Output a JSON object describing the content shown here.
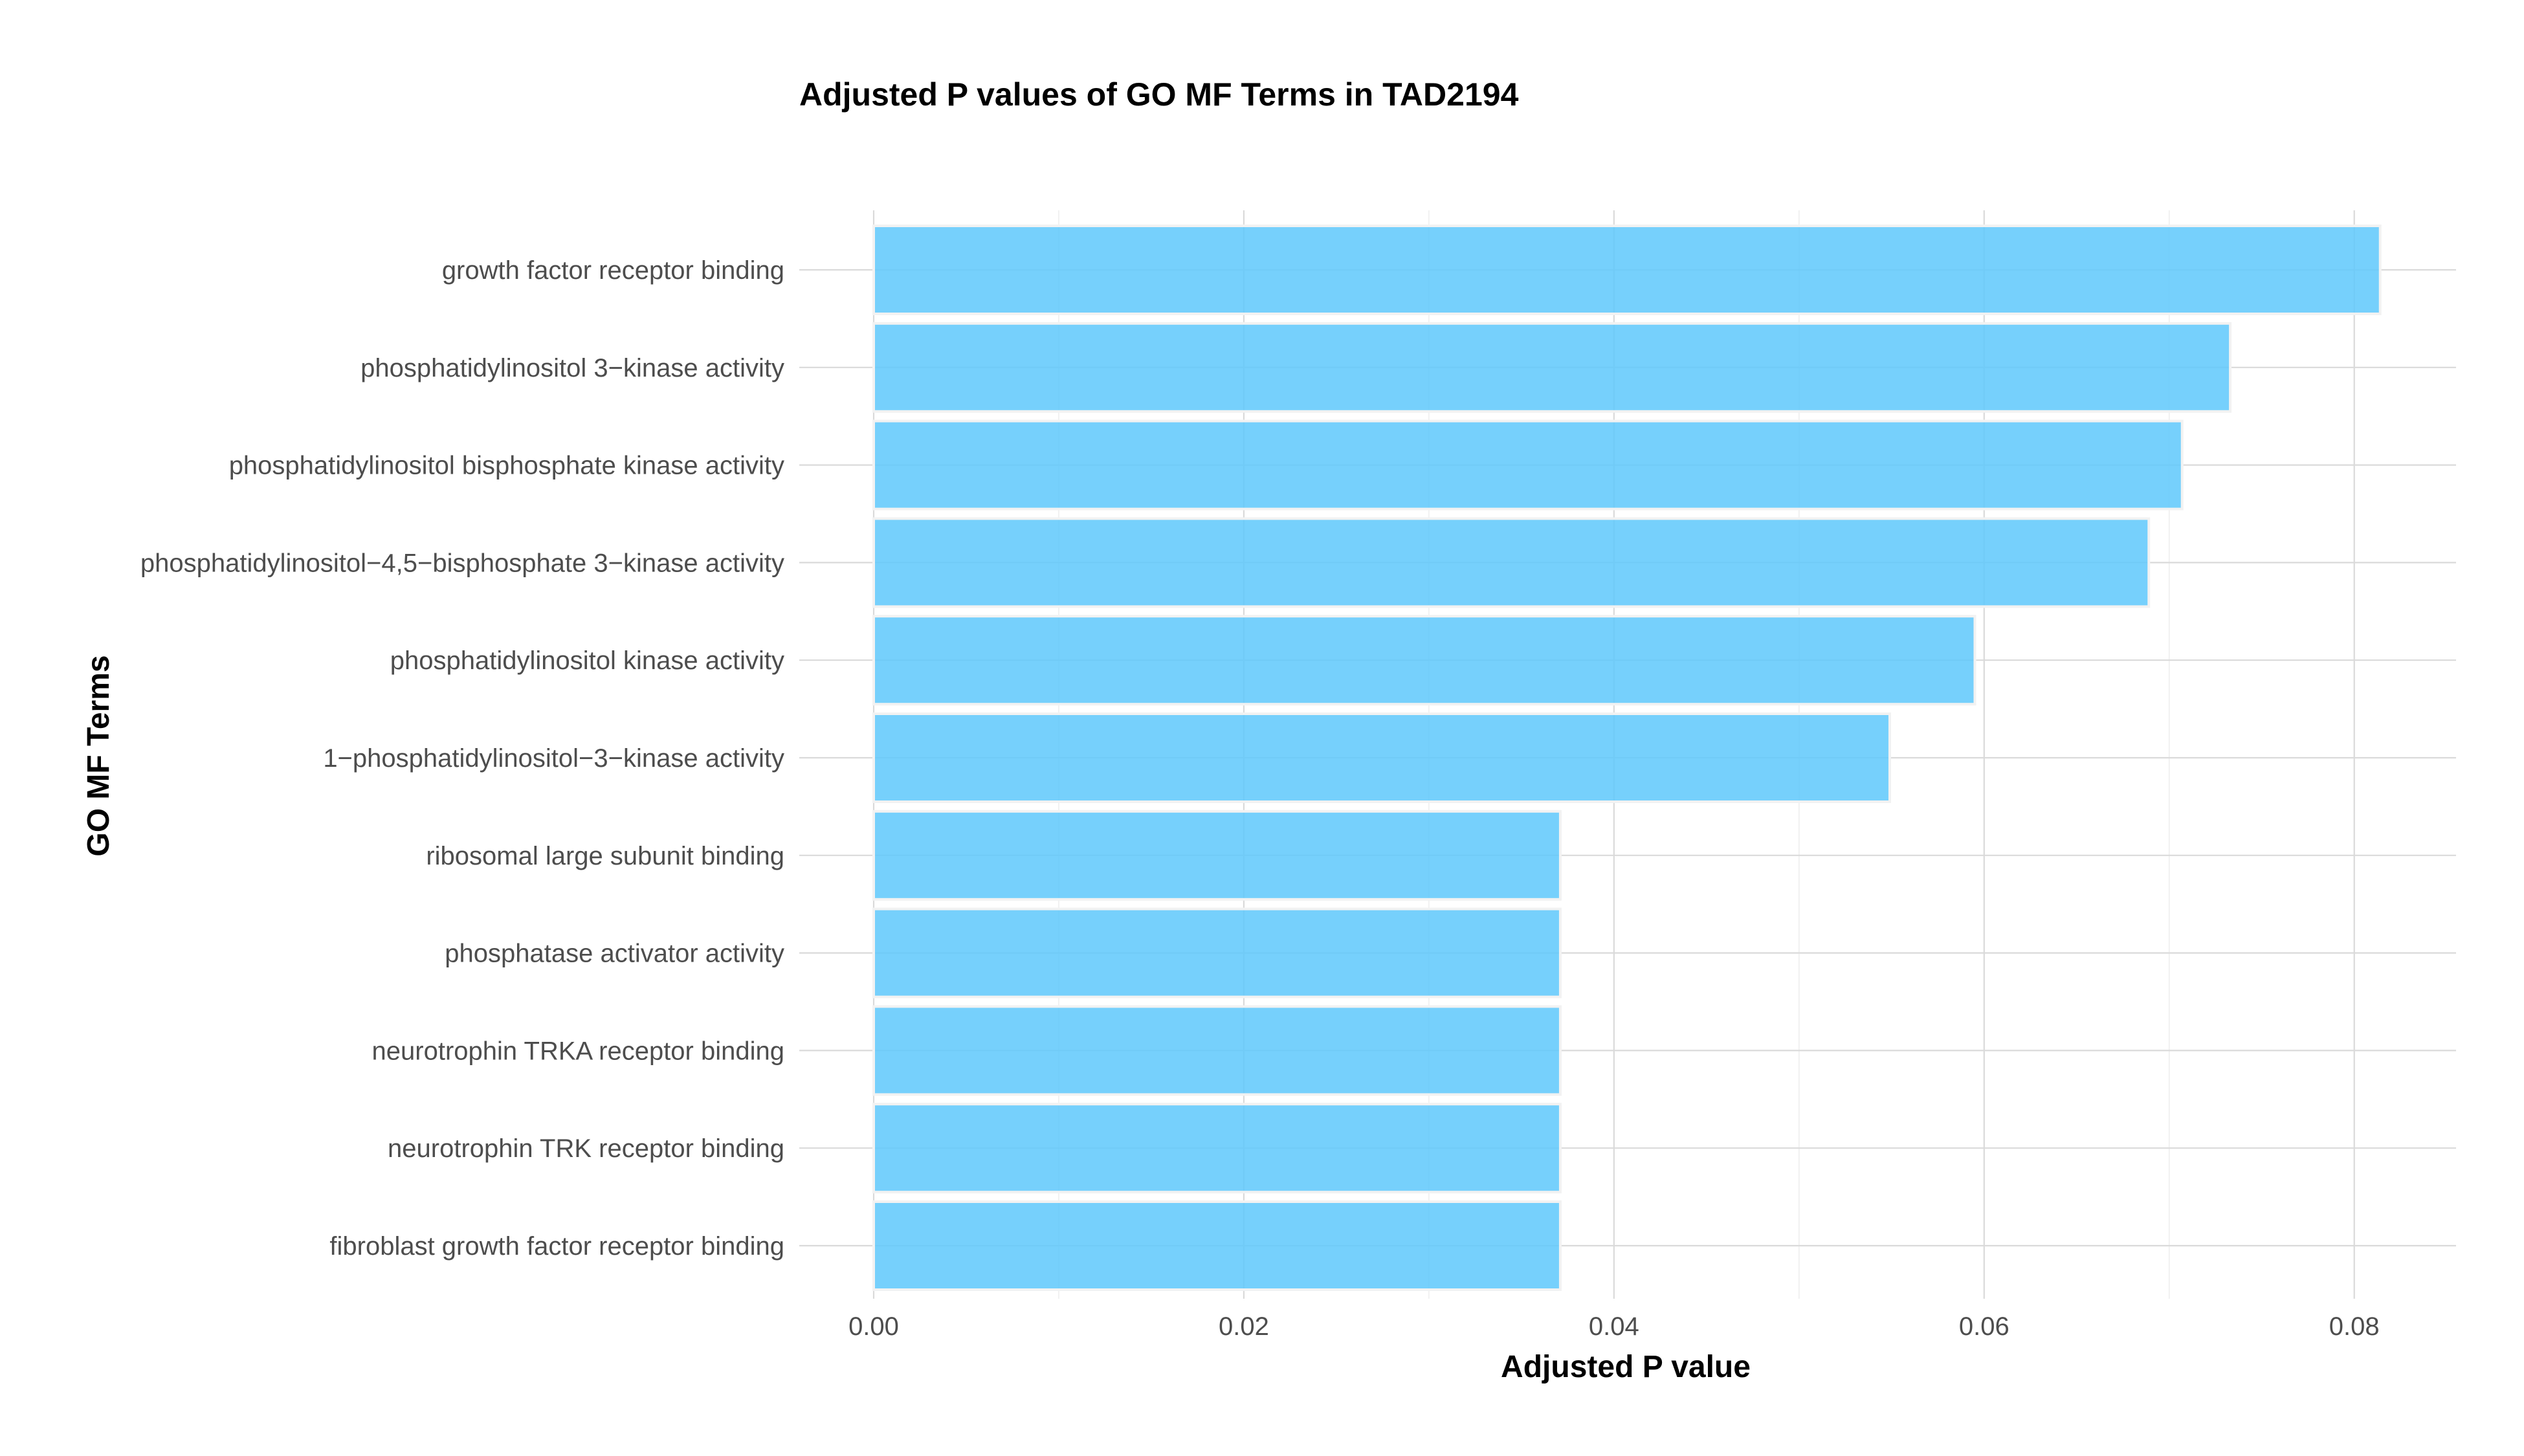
{
  "chart_data": {
    "type": "bar",
    "orientation": "horizontal",
    "title": "Adjusted P values of GO MF Terms in TAD2194",
    "xlabel": "Adjusted P value",
    "ylabel": "GO MF Terms",
    "xlim": [
      0,
      0.0855
    ],
    "x_ticks": [
      "0.00",
      "0.02",
      "0.04",
      "0.06",
      "0.08"
    ],
    "grid": true,
    "bar_color": "#5ec8fb",
    "categories": [
      "growth factor receptor binding",
      "phosphatidylinositol 3−kinase activity",
      "phosphatidylinositol bisphosphate kinase activity",
      "phosphatidylinositol−4,5−bisphosphate 3−kinase activity",
      "phosphatidylinositol kinase activity",
      "1−phosphatidylinositol−3−kinase activity",
      "ribosomal large subunit binding",
      "phosphatase activator activity",
      "neurotrophin TRKA receptor binding",
      "neurotrophin TRK receptor binding",
      "fibroblast growth factor receptor binding"
    ],
    "values": [
      0.0814,
      0.0733,
      0.0707,
      0.0689,
      0.0595,
      0.0549,
      0.0371,
      0.0371,
      0.0371,
      0.0371,
      0.0371
    ]
  }
}
